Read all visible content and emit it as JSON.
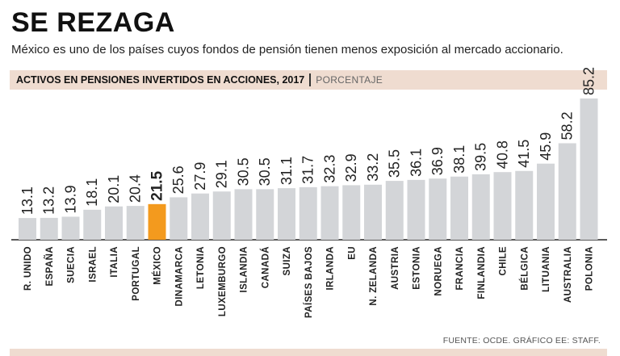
{
  "header": {
    "title": "SE REZAGA",
    "subtitle": "México es uno de los países cuyos fondos de pensión tienen menos exposición al mercado accionario."
  },
  "chart_data": {
    "type": "bar",
    "title": "ACTIVOS EN PENSIONES INVERTIDOS EN ACCIONES, 2017",
    "unit": "PORCENTAJE",
    "categories": [
      "R. UNIDO",
      "ESPAÑA",
      "SUECIA",
      "ISRAEL",
      "ITALIA",
      "PORTUGAL",
      "MÉXICO",
      "DINAMARCA",
      "LETONIA",
      "LUXEMBURGO",
      "ISLANDIA",
      "CANADÁ",
      "SUIZA",
      "PAÍSES BAJOS",
      "IRLANDA",
      "EU",
      "N. ZELANDA",
      "AUSTRIA",
      "ESTONIA",
      "NORUEGA",
      "FRANCIA",
      "FINLANDIA",
      "CHILE",
      "BÉLGICA",
      "LITUANIA",
      "AUSTRALIA",
      "POLONIA"
    ],
    "values": [
      13.1,
      13.2,
      13.9,
      18.1,
      20.1,
      20.4,
      21.5,
      25.6,
      27.9,
      29.1,
      30.5,
      30.5,
      31.1,
      31.7,
      32.3,
      32.9,
      33.2,
      35.5,
      36.1,
      36.9,
      38.1,
      39.5,
      40.8,
      41.5,
      45.9,
      58.2,
      85.2
    ],
    "value_labels": [
      "13.1",
      "13.2",
      "13.9",
      "18.1",
      "20.1",
      "20.4",
      "21.5",
      "25.6",
      "27.9",
      "29.1",
      "30.5",
      "30.5",
      "31.1",
      "31.7",
      "32.3",
      "32.9",
      "33.2",
      "35.5",
      "36.1",
      "36.9",
      "38.1",
      "39.5",
      "40.8",
      "41.5",
      "45.9",
      "58.2",
      "85.2"
    ],
    "highlight": "MÉXICO",
    "ylim": [
      0,
      85.2
    ],
    "xlabel": "",
    "ylabel": "",
    "grid": false,
    "colors": {
      "bar": "#d3d5d8",
      "highlight": "#f39a1e",
      "axis": "#222222",
      "band": "#efdcd0"
    }
  },
  "footer": {
    "source": "FUENTE: OCDE. GRÁFICO EE: STAFF."
  }
}
